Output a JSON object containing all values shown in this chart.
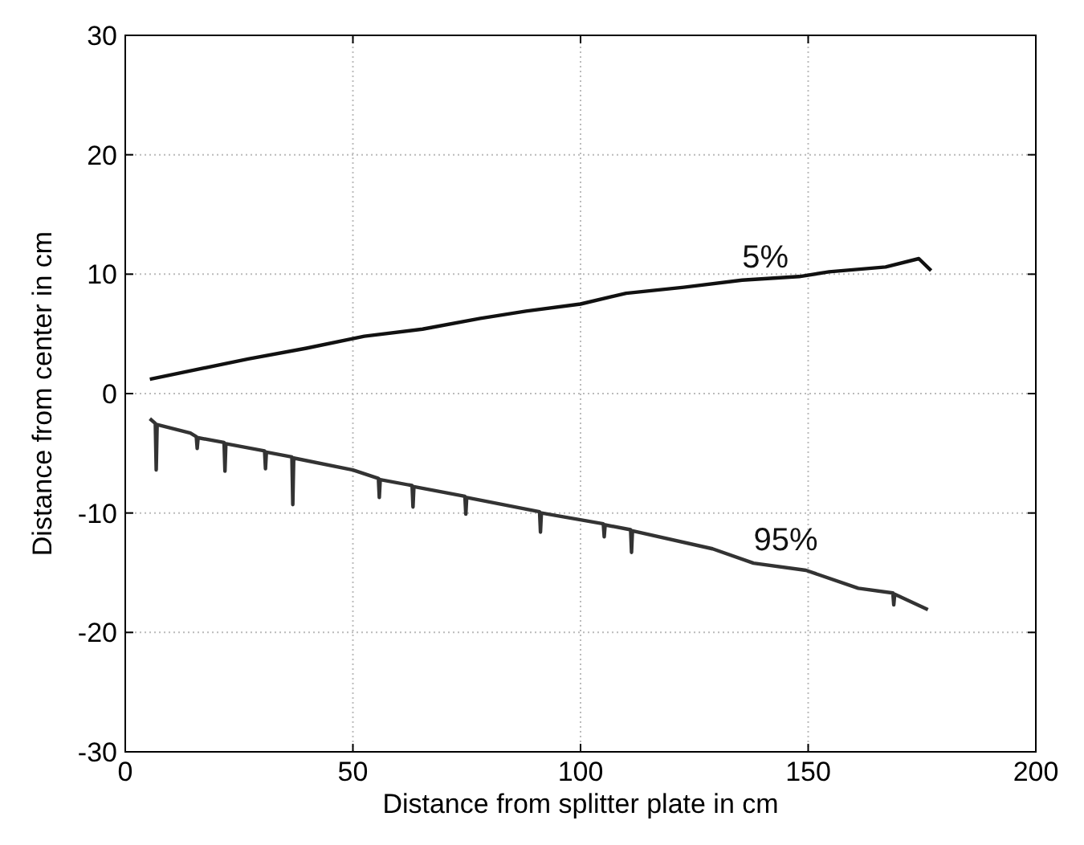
{
  "chart_data": {
    "type": "line",
    "xlabel": "Distance from splitter plate in cm",
    "ylabel": "Distance from center in cm",
    "xlim": [
      0,
      200
    ],
    "xticks": [
      0,
      50,
      100,
      150,
      200
    ],
    "ylim": [
      -30,
      30
    ],
    "yticks": [
      -30,
      -20,
      -10,
      0,
      10,
      20,
      30
    ],
    "grid": true,
    "line_style": "solid",
    "marker": "none",
    "series": [
      {
        "name": "5%",
        "color": "#111111",
        "x": [
          5.4,
          27,
          39.8,
          52.5,
          65.3,
          78,
          88,
          100,
          110,
          122.7,
          135.5,
          148,
          154.6,
          167,
          174.3,
          177
        ],
        "values": [
          1.2,
          2.9,
          3.8,
          4.8,
          5.4,
          6.3,
          6.9,
          7.5,
          8.4,
          8.9,
          9.5,
          9.8,
          10.2,
          10.6,
          11.3,
          10.3
        ]
      },
      {
        "name": "95%",
        "color": "#333333",
        "x": [
          5.4,
          6.6,
          6.8,
          7.0,
          14.3,
          15.6,
          15.8,
          16.0,
          21.7,
          21.9,
          22.1,
          30.6,
          30.8,
          31.0,
          36.6,
          36.8,
          37.0,
          50,
          55.6,
          55.8,
          56.0,
          63.0,
          63.2,
          63.4,
          74.6,
          74.8,
          75.0,
          91.0,
          91.2,
          91.4,
          105,
          105.2,
          105.4,
          111,
          111.2,
          111.4,
          129,
          138,
          149.5,
          161,
          168.6,
          168.8,
          169,
          176.3
        ],
        "values": [
          -2.1,
          -2.5,
          -6.4,
          -2.6,
          -3.3,
          -3.6,
          -4.6,
          -3.7,
          -4.1,
          -6.5,
          -4.2,
          -4.8,
          -6.3,
          -4.9,
          -5.3,
          -9.3,
          -5.4,
          -6.4,
          -7.1,
          -8.7,
          -7.2,
          -7.7,
          -9.5,
          -7.8,
          -8.6,
          -10.1,
          -8.7,
          -9.9,
          -11.6,
          -10,
          -10.9,
          -12,
          -11,
          -11.4,
          -13.3,
          -11.5,
          -13,
          -14.2,
          -14.8,
          -16.3,
          -16.7,
          -17.7,
          -16.8,
          -18.1
        ]
      }
    ]
  }
}
